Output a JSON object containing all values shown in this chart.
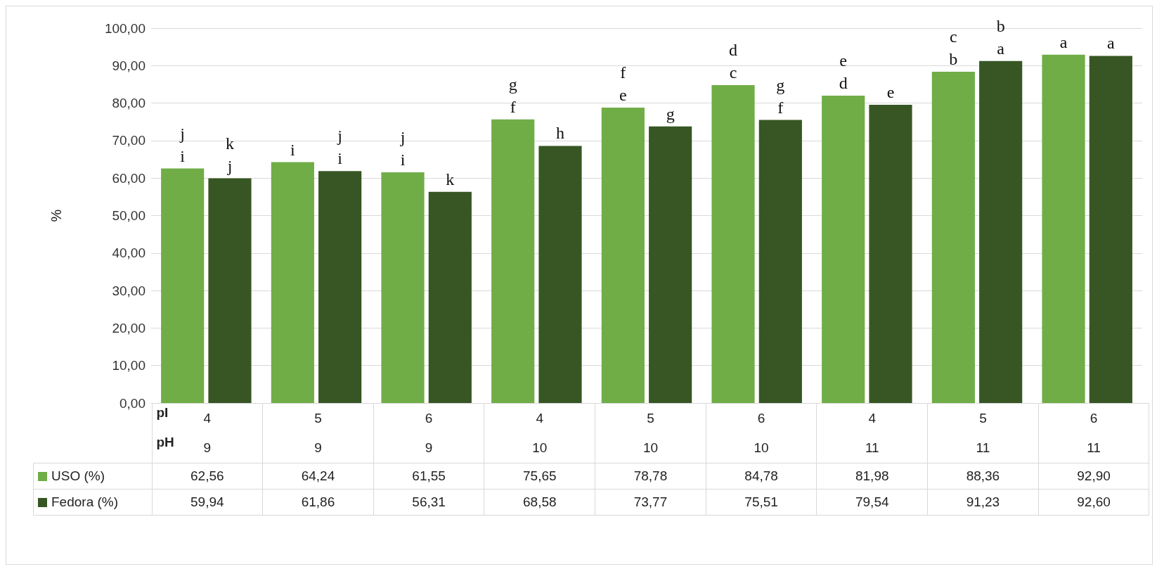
{
  "chart_data": {
    "type": "bar",
    "ylabel": "%",
    "categories": [
      "4\n9",
      "5\n9",
      "6\n9",
      "4\n10",
      "5\n10",
      "6\n10",
      "4\n11",
      "5\n11",
      "6\n11"
    ],
    "annotations": [
      "pI",
      "pH",
      "j\ni",
      "k\nj",
      "i",
      "j\ni",
      "j\ni",
      "k",
      "g\nf",
      "h",
      "f\ne",
      "g",
      "d\nc",
      "g\nf",
      "e\nd",
      "e",
      "c\nb",
      "b\na",
      "a",
      "a"
    ],
    "series": [
      {
        "name": "USO (%)",
        "color": "#70ad47",
        "values": [
          62.56,
          64.24,
          61.55,
          75.65,
          78.78,
          84.78,
          81.98,
          88.36,
          92.9
        ],
        "value_labels": [
          "62,56",
          "64,24",
          "61,55",
          "75,65",
          "78,78",
          "84,78",
          "81,98",
          "88,36",
          "92,90"
        ]
      },
      {
        "name": "Fedora (%)",
        "color": "#375623",
        "values": [
          59.94,
          61.86,
          56.31,
          68.58,
          73.77,
          75.51,
          79.54,
          91.23,
          92.6
        ],
        "value_labels": [
          "59,94",
          "61,86",
          "56,31",
          "68,58",
          "73,77",
          "75,51",
          "79,54",
          "91,23",
          "92,60"
        ]
      }
    ],
    "ylim": [
      0,
      100
    ],
    "yticks": [
      {
        "value": 0,
        "label": "0,00"
      },
      {
        "value": 10,
        "label": "10,00"
      },
      {
        "value": 20,
        "label": "20,00"
      },
      {
        "value": 30,
        "label": "30,00"
      },
      {
        "value": 40,
        "label": "40,00"
      },
      {
        "value": 50,
        "label": "50,00"
      },
      {
        "value": 60,
        "label": "60,00"
      },
      {
        "value": 70,
        "label": "70,00"
      },
      {
        "value": 80,
        "label": "80,00"
      },
      {
        "value": 90,
        "label": "90,00"
      },
      {
        "value": 100,
        "label": "100,00"
      }
    ],
    "grid": "y",
    "legend": "bottom"
  }
}
